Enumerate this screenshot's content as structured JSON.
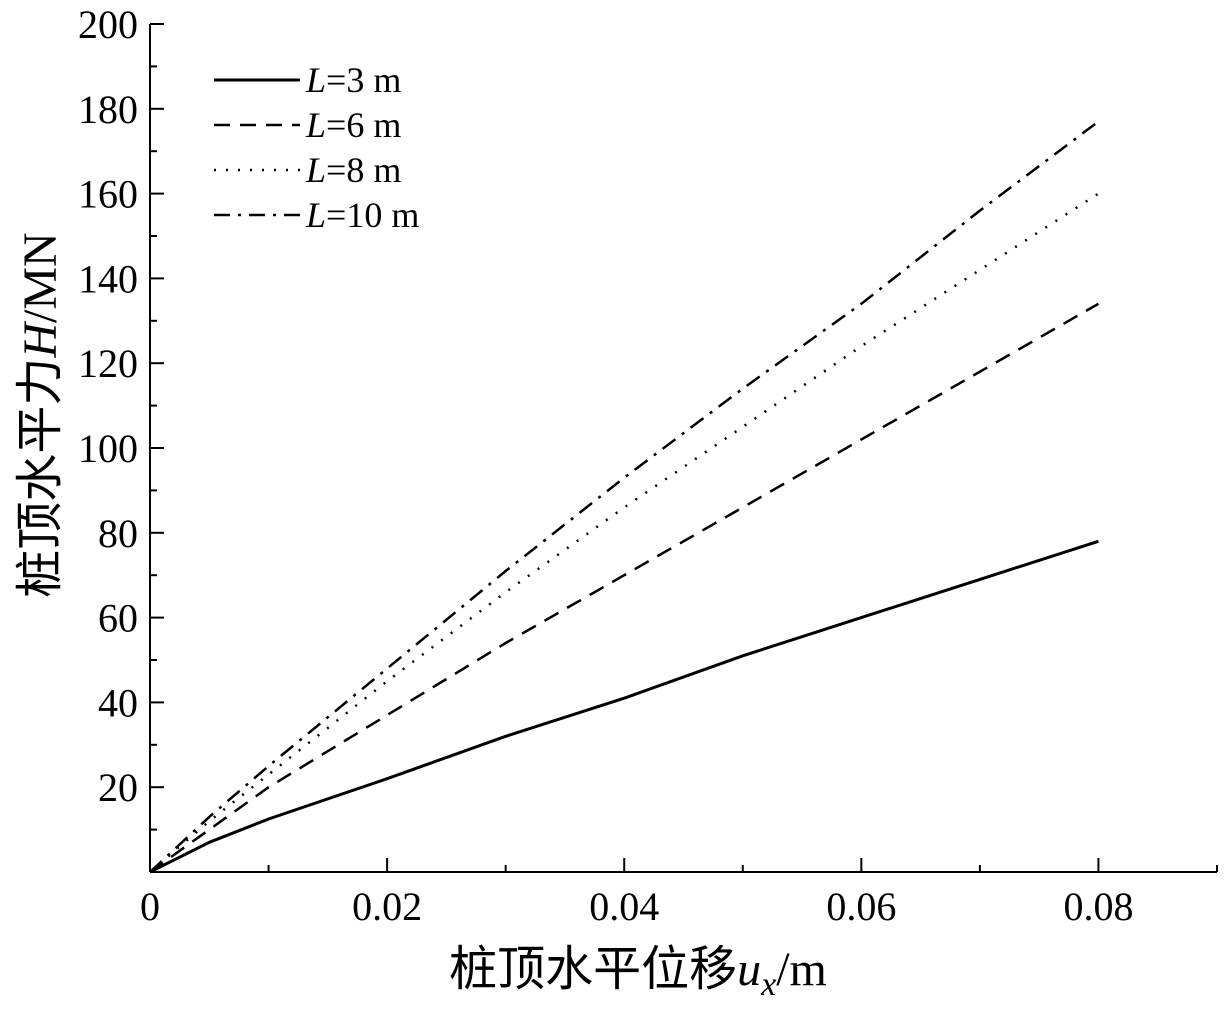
{
  "chart_data": {
    "type": "line",
    "title": "",
    "xlabel": {
      "prefix": "桩顶水平位移",
      "var": "u",
      "sub": "x",
      "suffix": "/m"
    },
    "ylabel": {
      "prefix": "桩顶水平力",
      "var": "H",
      "suffix": "/MN"
    },
    "xlim": [
      0,
      0.09
    ],
    "ylim": [
      0,
      200
    ],
    "x_ticks": [
      "0",
      "0.02",
      "0.04",
      "0.06",
      "0.08"
    ],
    "y_ticks": [
      "20",
      "40",
      "60",
      "80",
      "100",
      "120",
      "140",
      "160",
      "180",
      "200"
    ],
    "grid": false,
    "legend_position": "top-left",
    "series": [
      {
        "name": "L=3 m",
        "var": "L",
        "label_rest": "=3 m",
        "dash": "solid",
        "x": [
          0,
          0.005,
          0.01,
          0.02,
          0.03,
          0.04,
          0.05,
          0.06,
          0.07,
          0.08
        ],
        "y": [
          0,
          7,
          12.5,
          22,
          32,
          41,
          51,
          60,
          69,
          78
        ]
      },
      {
        "name": "L=6 m",
        "var": "L",
        "label_rest": "=6 m",
        "dash": "dashed",
        "x": [
          0,
          0.005,
          0.01,
          0.02,
          0.03,
          0.04,
          0.05,
          0.06,
          0.07,
          0.08
        ],
        "y": [
          0,
          10,
          20,
          37,
          54,
          70,
          86,
          102,
          118,
          134
        ]
      },
      {
        "name": "L=8 m",
        "var": "L",
        "label_rest": "=8 m",
        "dash": "dotted",
        "x": [
          0,
          0.005,
          0.01,
          0.02,
          0.03,
          0.04,
          0.05,
          0.06,
          0.07,
          0.08
        ],
        "y": [
          0,
          12,
          23,
          45,
          66,
          86,
          105,
          124,
          142,
          160
        ]
      },
      {
        "name": "L=10 m",
        "var": "L",
        "label_rest": "=10 m",
        "dash": "dashdot",
        "x": [
          0,
          0.005,
          0.01,
          0.02,
          0.03,
          0.04,
          0.05,
          0.06,
          0.07,
          0.08
        ],
        "y": [
          0,
          13,
          25,
          48,
          71,
          93,
          114,
          134,
          156,
          177
        ]
      }
    ]
  }
}
